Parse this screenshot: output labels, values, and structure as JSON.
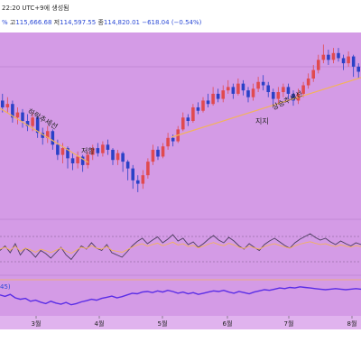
{
  "header": {
    "created_text": "22:20 UTC+9에 생성됨",
    "ohlc_prefix": "%",
    "high_label": "고",
    "high_value": "115,666.68",
    "low_label": "저",
    "low_value": "114,597.55",
    "close_label": "종",
    "close_value": "114,820.01",
    "change_value": "−618.04 (−0.54%)"
  },
  "indicator_label": "45)",
  "colors": {
    "background": "#d49be6",
    "up_candle": "#e04a4f",
    "down_candle": "#2a41c7",
    "trendline": "#f2b25c",
    "oscillator_line": "#4a3c5d",
    "oscillator_signal": "#f2b25c",
    "strength_line": "#5a2de6"
  },
  "annotations": [
    {
      "text": "하락추세선"
    },
    {
      "text": "저항"
    },
    {
      "text": "지지"
    },
    {
      "text": "상승추세선"
    }
  ],
  "chart_data": {
    "type": "candlestick",
    "x_ticks": [
      "3월",
      "4월",
      "5월",
      "6월",
      "7월",
      "8월"
    ],
    "price_header": {
      "high": 115666.68,
      "low": 114597.55,
      "close": 114820.01,
      "change": -618.04,
      "change_pct": -0.54
    },
    "candles_shape": [
      [
        0.62,
        0.58,
        0.66,
        0.55
      ],
      [
        0.58,
        0.6,
        0.64,
        0.55
      ],
      [
        0.6,
        0.52,
        0.62,
        0.49
      ],
      [
        0.52,
        0.55,
        0.58,
        0.48
      ],
      [
        0.55,
        0.5,
        0.57,
        0.46
      ],
      [
        0.5,
        0.47,
        0.54,
        0.44
      ],
      [
        0.47,
        0.52,
        0.55,
        0.44
      ],
      [
        0.52,
        0.43,
        0.53,
        0.4
      ],
      [
        0.43,
        0.4,
        0.46,
        0.36
      ],
      [
        0.4,
        0.44,
        0.47,
        0.37
      ],
      [
        0.44,
        0.36,
        0.45,
        0.33
      ],
      [
        0.36,
        0.3,
        0.39,
        0.27
      ],
      [
        0.3,
        0.34,
        0.37,
        0.25
      ],
      [
        0.34,
        0.28,
        0.35,
        0.22
      ],
      [
        0.28,
        0.25,
        0.31,
        0.21
      ],
      [
        0.25,
        0.29,
        0.32,
        0.22
      ],
      [
        0.29,
        0.24,
        0.3,
        0.2
      ],
      [
        0.24,
        0.3,
        0.32,
        0.22
      ],
      [
        0.3,
        0.34,
        0.36,
        0.27
      ],
      [
        0.34,
        0.31,
        0.37,
        0.29
      ],
      [
        0.31,
        0.36,
        0.38,
        0.29
      ],
      [
        0.36,
        0.33,
        0.39,
        0.3
      ],
      [
        0.33,
        0.27,
        0.34,
        0.24
      ],
      [
        0.27,
        0.31,
        0.33,
        0.24
      ],
      [
        0.31,
        0.26,
        0.32,
        0.2
      ],
      [
        0.26,
        0.22,
        0.27,
        0.15
      ],
      [
        0.22,
        0.15,
        0.24,
        0.1
      ],
      [
        0.15,
        0.13,
        0.18,
        0.08
      ],
      [
        0.13,
        0.18,
        0.21,
        0.1
      ],
      [
        0.18,
        0.26,
        0.28,
        0.16
      ],
      [
        0.26,
        0.33,
        0.36,
        0.24
      ],
      [
        0.33,
        0.29,
        0.35,
        0.27
      ],
      [
        0.29,
        0.35,
        0.37,
        0.28
      ],
      [
        0.35,
        0.4,
        0.43,
        0.33
      ],
      [
        0.4,
        0.38,
        0.42,
        0.35
      ],
      [
        0.38,
        0.45,
        0.47,
        0.37
      ],
      [
        0.45,
        0.52,
        0.55,
        0.44
      ],
      [
        0.52,
        0.5,
        0.54,
        0.47
      ],
      [
        0.5,
        0.58,
        0.6,
        0.49
      ],
      [
        0.58,
        0.56,
        0.61,
        0.54
      ],
      [
        0.56,
        0.62,
        0.64,
        0.55
      ],
      [
        0.62,
        0.6,
        0.66,
        0.58
      ],
      [
        0.6,
        0.66,
        0.7,
        0.59
      ],
      [
        0.66,
        0.63,
        0.69,
        0.61
      ],
      [
        0.63,
        0.68,
        0.71,
        0.61
      ],
      [
        0.68,
        0.7,
        0.74,
        0.66
      ],
      [
        0.7,
        0.66,
        0.72,
        0.63
      ],
      [
        0.66,
        0.72,
        0.75,
        0.65
      ],
      [
        0.72,
        0.68,
        0.74,
        0.65
      ],
      [
        0.68,
        0.64,
        0.7,
        0.61
      ],
      [
        0.64,
        0.69,
        0.72,
        0.62
      ],
      [
        0.69,
        0.73,
        0.76,
        0.67
      ],
      [
        0.73,
        0.71,
        0.77,
        0.68
      ],
      [
        0.71,
        0.67,
        0.73,
        0.64
      ],
      [
        0.67,
        0.63,
        0.69,
        0.6
      ],
      [
        0.63,
        0.67,
        0.7,
        0.6
      ],
      [
        0.67,
        0.7,
        0.72,
        0.64
      ],
      [
        0.7,
        0.66,
        0.72,
        0.63
      ],
      [
        0.66,
        0.62,
        0.68,
        0.59
      ],
      [
        0.62,
        0.66,
        0.69,
        0.6
      ],
      [
        0.66,
        0.71,
        0.73,
        0.64
      ],
      [
        0.71,
        0.75,
        0.78,
        0.69
      ],
      [
        0.75,
        0.8,
        0.83,
        0.73
      ],
      [
        0.8,
        0.86,
        0.89,
        0.78
      ],
      [
        0.86,
        0.89,
        0.95,
        0.84
      ],
      [
        0.89,
        0.86,
        0.92,
        0.83
      ],
      [
        0.86,
        0.9,
        0.93,
        0.84
      ],
      [
        0.9,
        0.87,
        0.93,
        0.85
      ],
      [
        0.87,
        0.84,
        0.89,
        0.8
      ],
      [
        0.84,
        0.88,
        0.91,
        0.82
      ],
      [
        0.88,
        0.82,
        0.89,
        0.76
      ],
      [
        0.82,
        0.79,
        0.84,
        0.75
      ]
    ],
    "oscillator_shape": [
      0.45,
      0.55,
      0.4,
      0.6,
      0.35,
      0.5,
      0.42,
      0.3,
      0.45,
      0.38,
      0.28,
      0.4,
      0.52,
      0.35,
      0.25,
      0.4,
      0.55,
      0.48,
      0.62,
      0.5,
      0.45,
      0.58,
      0.4,
      0.35,
      0.3,
      0.42,
      0.55,
      0.65,
      0.72,
      0.6,
      0.68,
      0.75,
      0.62,
      0.7,
      0.8,
      0.66,
      0.72,
      0.58,
      0.64,
      0.52,
      0.6,
      0.7,
      0.78,
      0.68,
      0.62,
      0.74,
      0.66,
      0.55,
      0.48,
      0.6,
      0.52,
      0.45,
      0.58,
      0.66,
      0.72,
      0.64,
      0.56,
      0.5,
      0.62,
      0.7,
      0.76,
      0.82,
      0.74,
      0.68,
      0.72,
      0.64,
      0.58,
      0.66,
      0.6,
      0.55,
      0.62,
      0.58
    ],
    "strength_shape": [
      0.6,
      0.55,
      0.62,
      0.5,
      0.45,
      0.48,
      0.38,
      0.42,
      0.35,
      0.3,
      0.38,
      0.32,
      0.28,
      0.34,
      0.26,
      0.3,
      0.36,
      0.4,
      0.45,
      0.42,
      0.48,
      0.52,
      0.56,
      0.5,
      0.54,
      0.6,
      0.66,
      0.64,
      0.7,
      0.72,
      0.68,
      0.74,
      0.7,
      0.76,
      0.72,
      0.66,
      0.7,
      0.64,
      0.68,
      0.62,
      0.66,
      0.7,
      0.74,
      0.72,
      0.76,
      0.7,
      0.66,
      0.72,
      0.68,
      0.64,
      0.7,
      0.74,
      0.78,
      0.76,
      0.8,
      0.84,
      0.82,
      0.86,
      0.84,
      0.88,
      0.86,
      0.84,
      0.82,
      0.8,
      0.78,
      0.8,
      0.82,
      0.8,
      0.78,
      0.8,
      0.82,
      0.8
    ]
  }
}
